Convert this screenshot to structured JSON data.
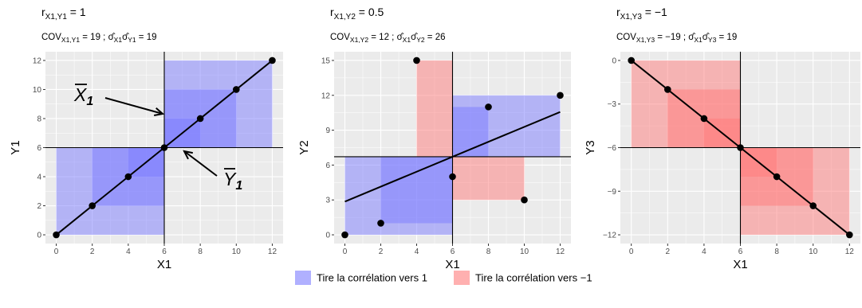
{
  "legend": {
    "items": [
      {
        "label": "Tire la corrélation vers 1",
        "color": "#7b7bff"
      },
      {
        "label": "Tire la corrélation vers −1",
        "color": "#ff7b7b"
      }
    ]
  },
  "annotations": {
    "xbar": {
      "base": "X",
      "sub": "1"
    },
    "ybar": {
      "base": "Y",
      "sub": "1"
    }
  },
  "chart_data": [
    {
      "type": "scatter",
      "title": {
        "r_base": "r",
        "r_sub": "X1,Y1",
        "r_value": " = 1"
      },
      "subtitle": {
        "cov_base": "COV",
        "cov_sub": "X1,Y1",
        "cov_value": " = 19 ; ",
        "sig1_sub": "X1",
        "sig2_sub": "Y1",
        "sig_value": " = 19"
      },
      "xlabel": "X1",
      "ylabel": "Y1",
      "xlim": [
        -0.6,
        12.6
      ],
      "ylim": [
        -0.6,
        12.6
      ],
      "xticks": [
        0,
        2,
        4,
        6,
        8,
        10,
        12
      ],
      "yticks": [
        0,
        2,
        4,
        6,
        8,
        10,
        12
      ],
      "x": [
        0,
        2,
        4,
        6,
        8,
        10,
        12
      ],
      "y": [
        0,
        2,
        4,
        6,
        8,
        10,
        12
      ],
      "x_mean": 6,
      "y_mean": 6,
      "fit_line": [
        0,
        0,
        12,
        12
      ]
    },
    {
      "type": "scatter",
      "title": {
        "r_base": "r",
        "r_sub": "X1,Y2",
        "r_value": " = 0.5"
      },
      "subtitle": {
        "cov_base": "COV",
        "cov_sub": "X1,Y2",
        "cov_value": " = 12 ; ",
        "sig1_sub": "X1",
        "sig2_sub": "Y2",
        "sig_value": " = 26"
      },
      "xlabel": "X1",
      "ylabel": "Y2",
      "xlim": [
        -0.6,
        12.6
      ],
      "ylim": [
        -0.75,
        15.75
      ],
      "xticks": [
        0,
        2,
        4,
        6,
        8,
        10,
        12
      ],
      "yticks": [
        0,
        3,
        6,
        9,
        12,
        15
      ],
      "x": [
        0,
        2,
        4,
        6,
        8,
        10,
        12
      ],
      "y": [
        0,
        1,
        15,
        5,
        11,
        3,
        12
      ],
      "x_mean": 6,
      "y_mean": 6.714,
      "fit_line": [
        0,
        2.857,
        12,
        10.571
      ]
    },
    {
      "type": "scatter",
      "title": {
        "r_base": "r",
        "r_sub": "X1,Y3",
        "r_value": " = −1"
      },
      "subtitle": {
        "cov_base": "COV",
        "cov_sub": "X1,Y3",
        "cov_value": " = −19 ; ",
        "sig1_sub": "X1",
        "sig2_sub": "Y3",
        "sig_value": " = 19"
      },
      "xlabel": "X1",
      "ylabel": "Y3",
      "xlim": [
        -0.6,
        12.6
      ],
      "ylim": [
        -12.6,
        0.6
      ],
      "xticks": [
        0,
        2,
        4,
        6,
        8,
        10,
        12
      ],
      "yticks": [
        0,
        -3,
        -6,
        -9,
        -12
      ],
      "ytick_labels": [
        "0",
        "−3",
        "−6",
        "−9",
        "−12"
      ],
      "x": [
        0,
        2,
        4,
        6,
        8,
        10,
        12
      ],
      "y": [
        0,
        -2,
        -4,
        -6,
        -8,
        -10,
        -12
      ],
      "x_mean": 6,
      "y_mean": -6,
      "fit_line": [
        0,
        0,
        12,
        -12
      ]
    }
  ]
}
